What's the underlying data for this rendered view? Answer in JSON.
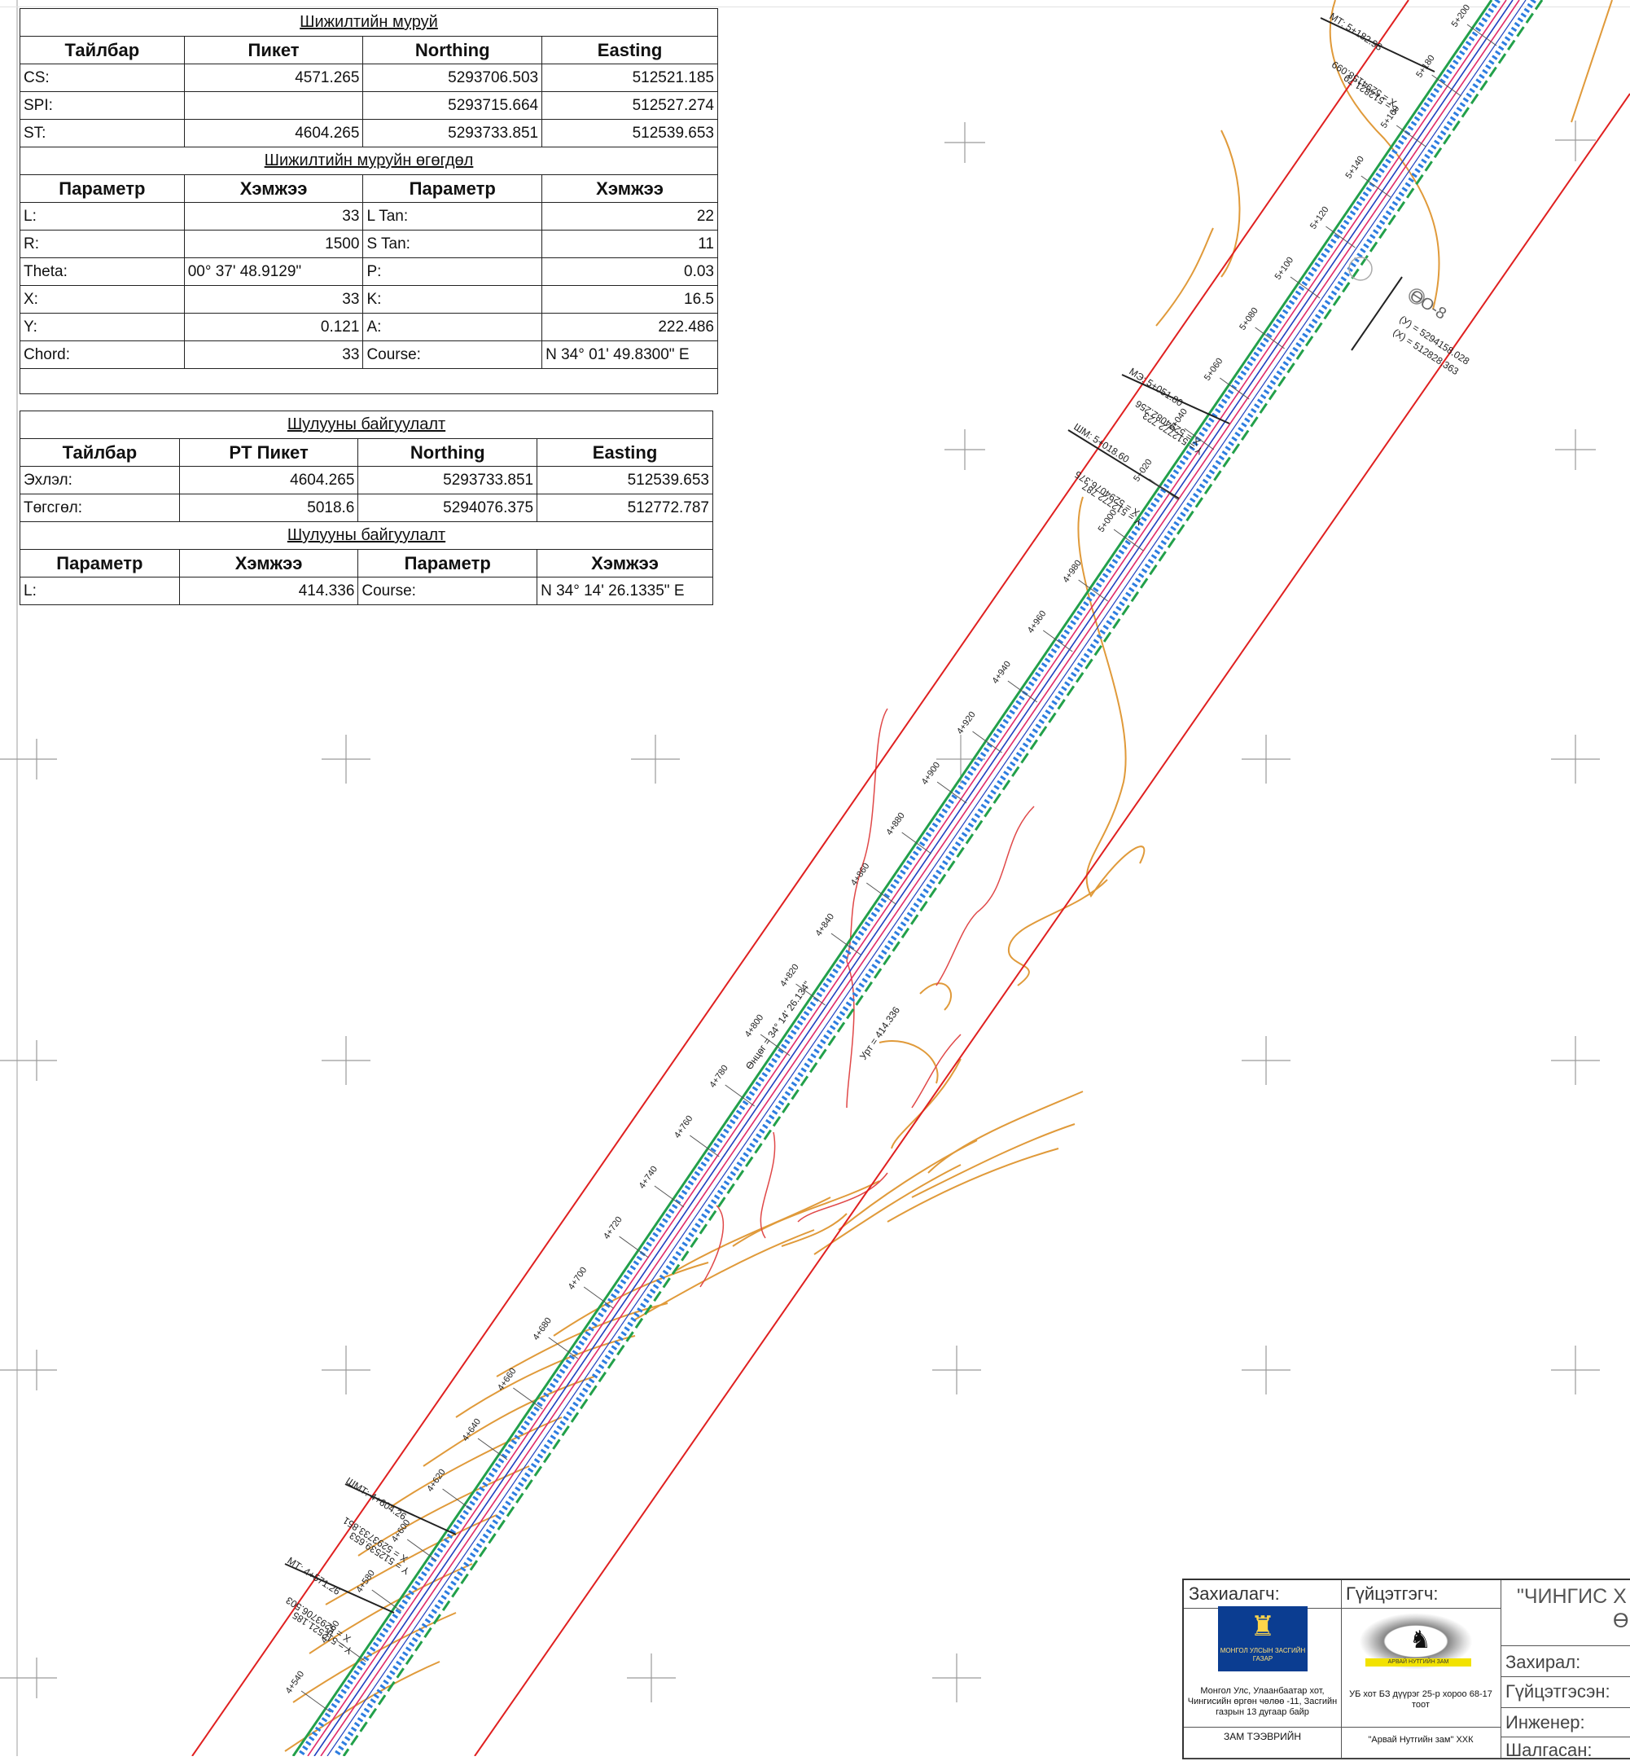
{
  "curve_table": {
    "title": "Шижилтийн муруй",
    "headers": [
      "Тайлбар",
      "Пикет",
      "Northing",
      "Easting"
    ],
    "rows": [
      {
        "label": "CS:",
        "station": "4571.265",
        "northing": "5293706.503",
        "easting": "512521.185"
      },
      {
        "label": "SPI:",
        "station": "",
        "northing": "5293715.664",
        "easting": "512527.274"
      },
      {
        "label": "ST:",
        "station": "4604.265",
        "northing": "5293733.851",
        "easting": "512539.653"
      }
    ]
  },
  "curve_params": {
    "title": "Шижилтийн муруйн өгөгдөл",
    "headers": [
      "Параметр",
      "Хэмжээ",
      "Параметр",
      "Хэмжээ"
    ],
    "rows": [
      {
        "p1": "L:",
        "v1": "33",
        "p2": "L Tan:",
        "v2": "22"
      },
      {
        "p1": "R:",
        "v1": "1500",
        "p2": "S Tan:",
        "v2": "11"
      },
      {
        "p1": "Theta:",
        "v1": "00° 37' 48.9129\"",
        "p2": "P:",
        "v2": "0.03"
      },
      {
        "p1": "X:",
        "v1": "33",
        "p2": "K:",
        "v2": "16.5"
      },
      {
        "p1": "Y:",
        "v1": "0.121",
        "p2": "A:",
        "v2": "222.486"
      },
      {
        "p1": "Chord:",
        "v1": "33",
        "p2": "Course:",
        "v2": "N 34° 01' 49.8300\" E"
      }
    ]
  },
  "line_table": {
    "title": "Шулууны байгуулалт",
    "headers": [
      "Тайлбар",
      "PT Пикет",
      "Northing",
      "Easting"
    ],
    "rows": [
      {
        "label": "Эхлэл:",
        "station": "4604.265",
        "northing": "5293733.851",
        "easting": "512539.653"
      },
      {
        "label": "Төгсгөл:",
        "station": "5018.6",
        "northing": "5294076.375",
        "easting": "512772.787"
      }
    ]
  },
  "line_params": {
    "title": "Шулууны байгуулалт",
    "headers": [
      "Параметр",
      "Хэмжээ",
      "Параметр",
      "Хэмжээ"
    ],
    "rows": [
      {
        "p1": "L:",
        "v1": "414.336",
        "p2": "Course:",
        "v2": "N 34° 14' 26.1335\" E"
      }
    ]
  },
  "drawing": {
    "stations": [
      "4+540",
      "4+560",
      "4+580",
      "4+600",
      "4+620",
      "4+640",
      "4+660",
      "4+680",
      "4+700",
      "4+720",
      "4+740",
      "4+760",
      "4+780",
      "4+800",
      "4+820",
      "4+840",
      "4+860",
      "4+880",
      "4+900",
      "4+920",
      "4+940",
      "4+960",
      "4+980",
      "5+000",
      "5+020",
      "5+040",
      "5+060",
      "5+080",
      "5+100",
      "5+120",
      "5+140",
      "5+160",
      "5+180",
      "5+200"
    ],
    "callouts": {
      "mt_top": "МТ: 5+182.98",
      "mt_top_x": "X = 5294158.099",
      "mt_top_y": "Y = 512821.79",
      "me": "МЭ: 5+051.80",
      "me_x": "X = 5294082.256",
      "me_y": "Y = 512772.723",
      "shm_top": "ШМ: 5+018.60",
      "shm_top_x": "X = 5294076.375",
      "shm_top_y": "Y = 512772.787",
      "bm": "ӨО-8",
      "bm_y": "(У) = 5294158.028",
      "bm_x": "(Х) = 512828.363",
      "azimuth": "Өнцөг = 34° 14' 26.134\"",
      "length": "Урт = 414.336",
      "shm_bot": "ШМТ: 4+604.26",
      "shm_bot_x": "X = 5293733.851",
      "shm_bot_y": "Y = 512539.653",
      "mt_bot": "МТ: 4+571.26",
      "mt_bot_x": "X = 5293706.503",
      "mt_bot_y": "Y = 512521.185"
    }
  },
  "title_block": {
    "client_label": "Захиалагч:",
    "contractor_label": "Гүйцэтгэгч:",
    "project_title": "\"ЧИНГИС Х",
    "project_title_2": "Ө",
    "emblem_text": "МОНГОЛ УЛСЫН ЗАСГИЙН ГАЗАР",
    "client_address": "Монгол Улс, Улаанбаатар хот, Чингисийн өргөн чөлөө -11, Засгийн газрын 13 дугаар байр",
    "contractor_address": "УБ хот БЗ дүүрэг 25-р хороо 68-17 тоот",
    "contractor_logo_text": "АРВАЙ НУТГИЙН ЗАМ",
    "client_dept": "ЗАМ ТЭЭВРИЙН",
    "contractor_name": "\"Арвай Нутгийн зам\" ХХК",
    "director_label": "Захирал:",
    "performed_label": "Гүйцэтгэсэн:",
    "engineer_label": "Инженер:",
    "checked_label": "Шалгасан:"
  }
}
